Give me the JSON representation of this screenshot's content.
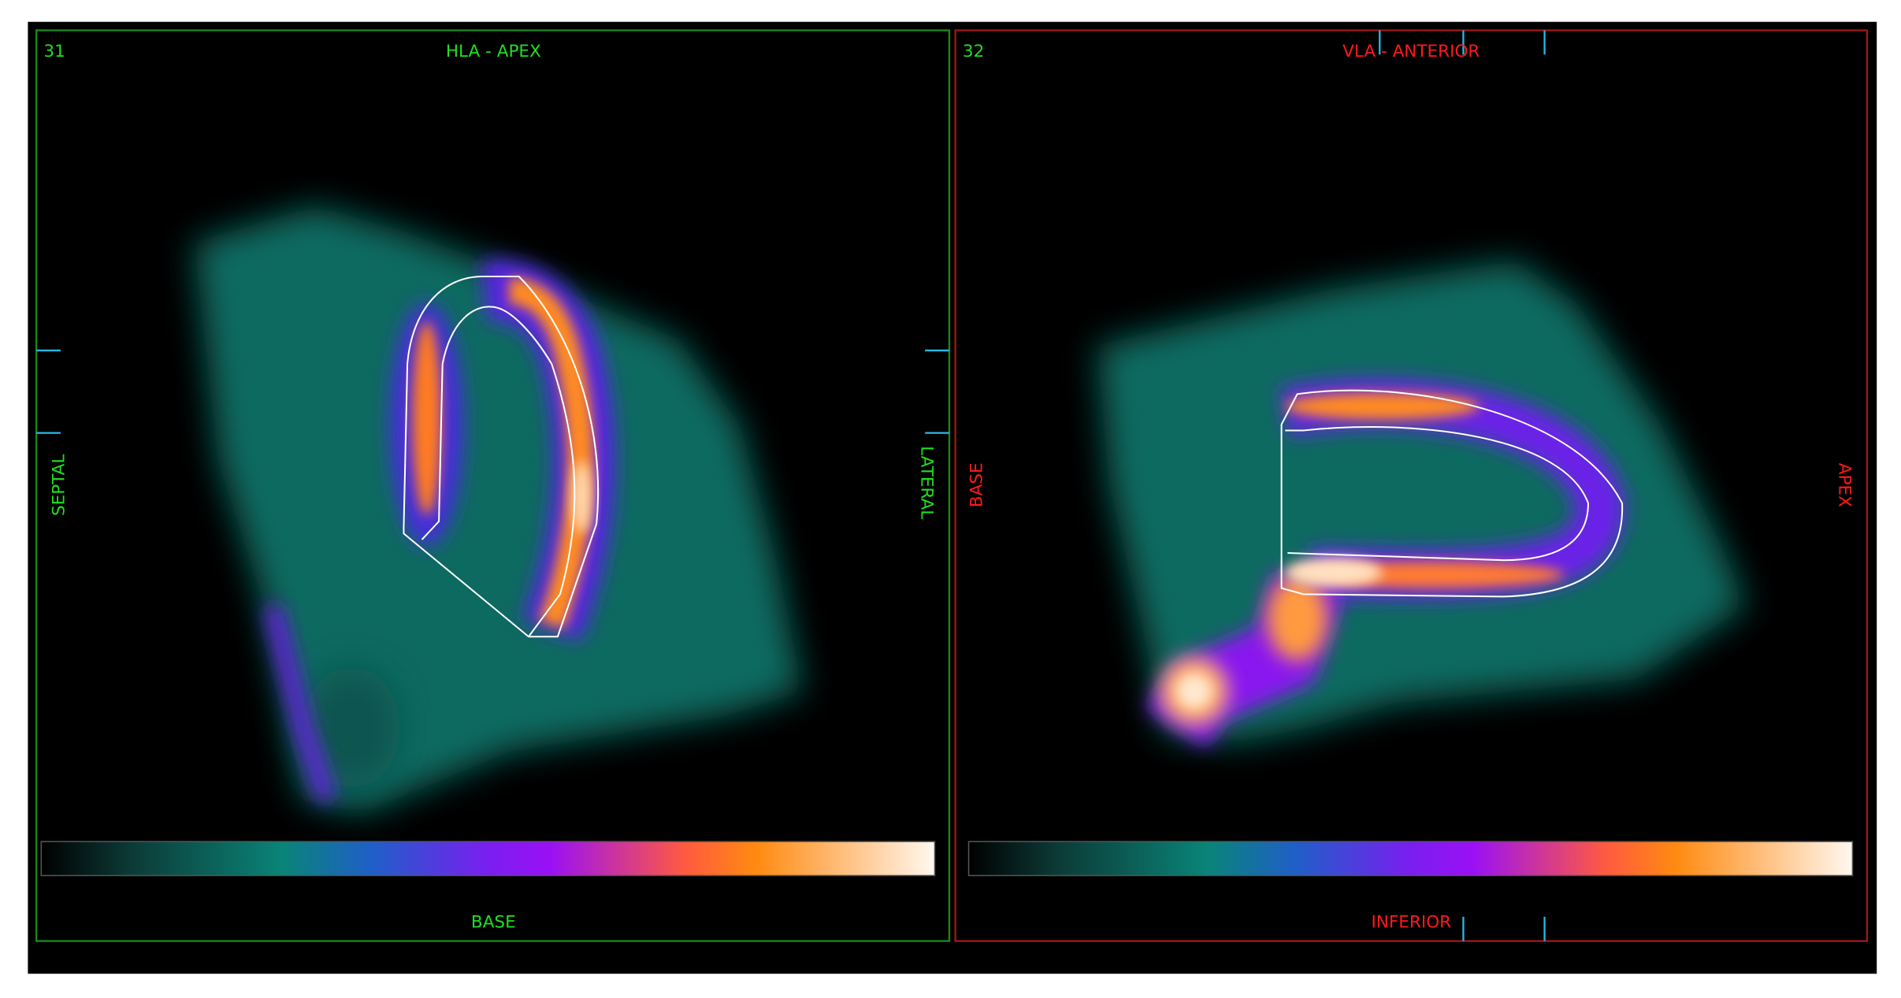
{
  "panels": [
    {
      "slice": "31",
      "title": "HLA - APEX",
      "left": "SEPTAL",
      "right": "LATERAL",
      "bottom": "BASE"
    },
    {
      "slice": "32",
      "title": "VLA - ANTERIOR",
      "left": "BASE",
      "right": "APEX",
      "bottom": "INFERIOR"
    }
  ]
}
